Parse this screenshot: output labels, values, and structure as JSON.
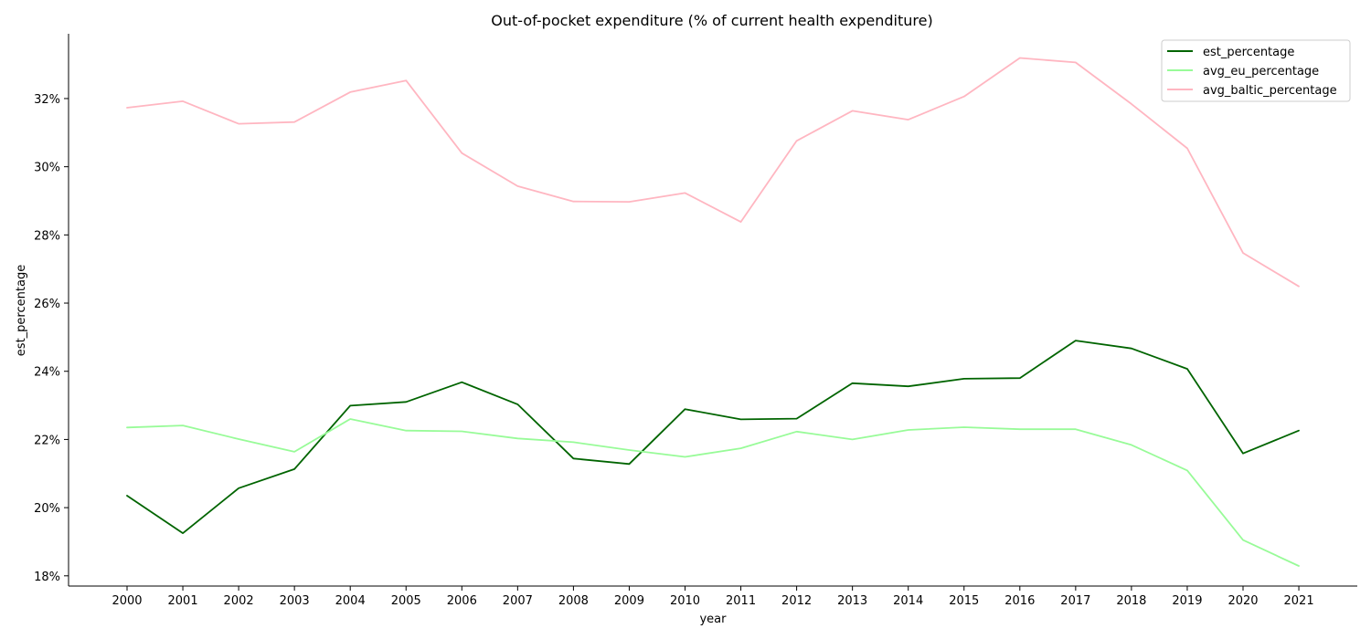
{
  "chart_data": {
    "type": "line",
    "title": "Out-of-pocket expenditure (% of current health expenditure)",
    "xlabel": "year",
    "ylabel": "est_percentage",
    "x": [
      "2000",
      "2001",
      "2002",
      "2003",
      "2004",
      "2005",
      "2006",
      "2007",
      "2008",
      "2009",
      "2010",
      "2011",
      "2012",
      "2013",
      "2014",
      "2015",
      "2016",
      "2017",
      "2018",
      "2019",
      "2020",
      "2021"
    ],
    "y_ticks": [
      18,
      20,
      22,
      24,
      26,
      28,
      30,
      32
    ],
    "y_tick_labels": [
      "18%",
      "20%",
      "22%",
      "24%",
      "26%",
      "28%",
      "30%",
      "32%"
    ],
    "ylim": [
      17.7,
      33.9
    ],
    "grid": false,
    "legend_position": "top-right",
    "series": [
      {
        "name": "est_percentage",
        "color": "#006400",
        "values": [
          20.35,
          19.25,
          20.57,
          21.13,
          22.99,
          23.1,
          23.68,
          23.03,
          21.44,
          21.28,
          22.89,
          22.59,
          22.61,
          23.65,
          23.56,
          23.78,
          23.8,
          24.9,
          24.67,
          24.07,
          21.59,
          22.26
        ]
      },
      {
        "name": "avg_eu_percentage",
        "color": "#98fb98",
        "values": [
          22.35,
          22.41,
          22.01,
          21.64,
          22.6,
          22.26,
          22.24,
          22.03,
          21.92,
          21.69,
          21.49,
          21.74,
          22.23,
          22.0,
          22.28,
          22.36,
          22.3,
          22.3,
          21.84,
          21.09,
          19.05,
          18.29
        ]
      },
      {
        "name": "avg_baltic_percentage",
        "color": "#ffb6c1",
        "values": [
          31.73,
          31.92,
          31.26,
          31.31,
          32.19,
          32.53,
          30.4,
          29.43,
          28.98,
          28.97,
          29.23,
          28.38,
          30.76,
          31.64,
          31.38,
          32.06,
          33.19,
          33.06,
          31.84,
          30.54,
          27.47,
          26.49
        ]
      }
    ]
  }
}
